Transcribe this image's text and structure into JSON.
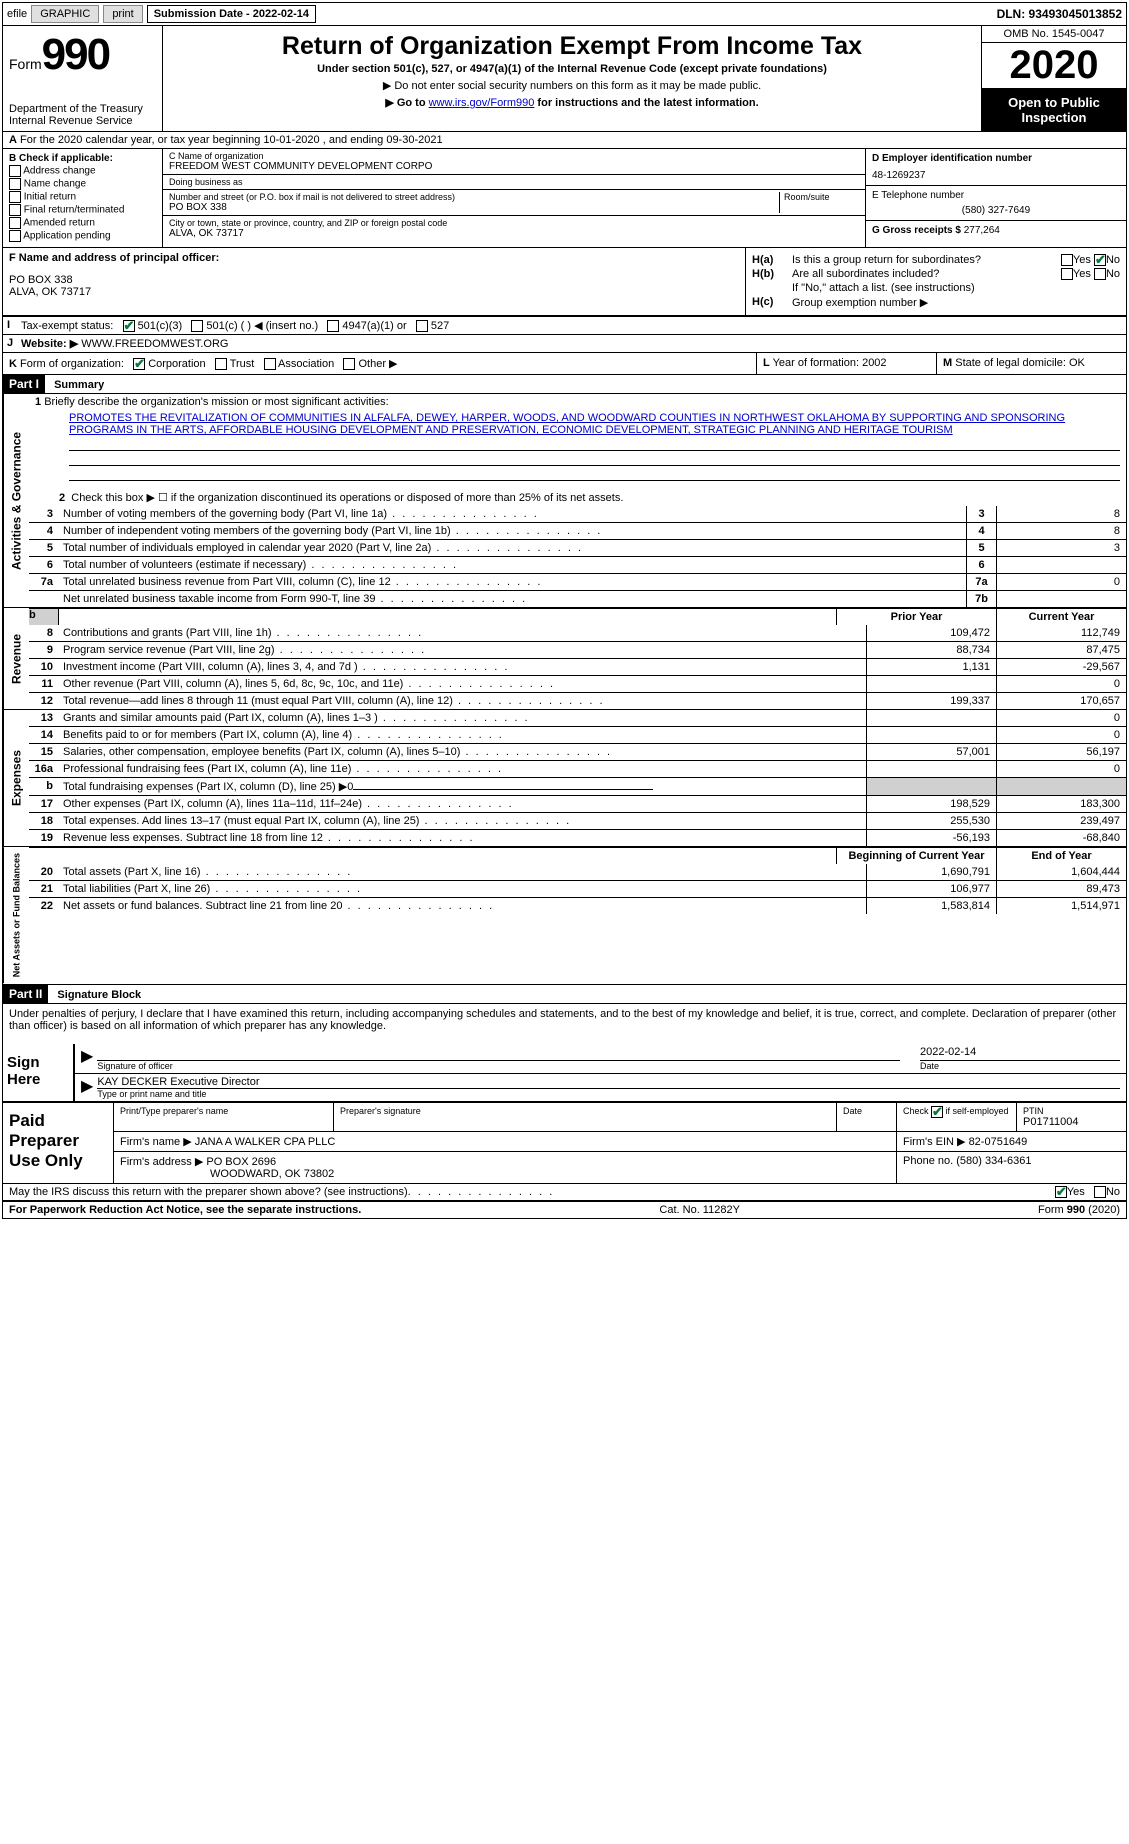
{
  "topbar": {
    "efile": "efile",
    "graphic": "GRAPHIC",
    "print": "print",
    "submission_label": "Submission Date - 2022-02-14",
    "dln": "DLN: 93493045013852"
  },
  "header": {
    "form_prefix": "Form",
    "form_number": "990",
    "dept": "Department of the Treasury",
    "irs": "Internal Revenue Service",
    "title": "Return of Organization Exempt From Income Tax",
    "under": "Under section 501(c), 527, or 4947(a)(1) of the Internal Revenue Code (except private foundations)",
    "note1": "▶ Do not enter social security numbers on this form as it may be made public.",
    "note2_pre": "▶ Go to ",
    "note2_link": "www.irs.gov/Form990",
    "note2_post": " for instructions and the latest information.",
    "omb": "OMB No. 1545-0047",
    "year": "2020",
    "open": "Open to Public Inspection"
  },
  "row_a": {
    "label": "A",
    "text": "For the 2020 calendar year, or tax year beginning 10-01-2020    , and ending 09-30-2021"
  },
  "section_b": {
    "header": "B Check if applicable:",
    "opts": [
      "Address change",
      "Name change",
      "Initial return",
      "Final return/terminated",
      "Amended return",
      "Application pending"
    ]
  },
  "section_c": {
    "name_label": "C Name of organization",
    "name": "FREEDOM WEST COMMUNITY DEVELOPMENT CORPO",
    "dba_label": "Doing business as",
    "dba": "",
    "addr_label": "Number and street (or P.O. box if mail is not delivered to street address)",
    "room_label": "Room/suite",
    "addr": "PO BOX 338",
    "city_label": "City or town, state or province, country, and ZIP or foreign postal code",
    "city": "ALVA, OK  73717"
  },
  "section_d": {
    "label": "D Employer identification number",
    "ein": "48-1269237"
  },
  "section_e": {
    "label": "E Telephone number",
    "phone": "(580) 327-7649"
  },
  "section_g": {
    "label": "G Gross receipts $",
    "amount": "277,264"
  },
  "section_f": {
    "label": "F  Name and address of principal officer:",
    "addr1": "PO BOX 338",
    "addr2": "ALVA, OK  73717"
  },
  "section_h": {
    "ha_label": "H(a)",
    "ha_text": "Is this a group return for subordinates?",
    "ha_yes": "Yes",
    "ha_no": "No",
    "hb_label": "H(b)",
    "hb_text": "Are all subordinates included?",
    "hb_yes": "Yes",
    "hb_no": "No",
    "hb_note": "If \"No,\" attach a list. (see instructions)",
    "hc_label": "H(c)",
    "hc_text": "Group exemption number ▶"
  },
  "row_i": {
    "label": "I",
    "text": "Tax-exempt status:",
    "opt1": "501(c)(3)",
    "opt2": "501(c) (  ) ◀ (insert no.)",
    "opt3": "4947(a)(1) or",
    "opt4": "527"
  },
  "row_j": {
    "label": "J",
    "text": "Website: ▶",
    "url": "WWW.FREEDOMWEST.ORG"
  },
  "row_k": {
    "label": "K",
    "text": "Form of organization:",
    "opts": [
      "Corporation",
      "Trust",
      "Association",
      "Other ▶"
    ]
  },
  "row_l": {
    "label": "L",
    "text": "Year of formation: 2002"
  },
  "row_m": {
    "label": "M",
    "text": "State of legal domicile: OK"
  },
  "part1": {
    "num": "Part I",
    "title": "Summary",
    "line1_label": "1",
    "line1_text": "Briefly describe the organization's mission or most significant activities:",
    "mission": "PROMOTES THE REVITALIZATION OF COMMUNITIES IN ALFALFA, DEWEY, HARPER, WOODS, AND WOODWARD COUNTIES IN NORTHWEST OKLAHOMA BY SUPPORTING AND SPONSORING PROGRAMS IN THE ARTS, AFFORDABLE HOUSING DEVELOPMENT AND PRESERVATION, ECONOMIC DEVELOPMENT, STRATEGIC PLANNING AND HERITAGE TOURISM",
    "line2": "Check this box ▶ ☐ if the organization discontinued its operations or disposed of more than 25% of its net assets.",
    "lines_ag": [
      {
        "n": "3",
        "d": "Number of voting members of the governing body (Part VI, line 1a)",
        "b": "3",
        "v": "8"
      },
      {
        "n": "4",
        "d": "Number of independent voting members of the governing body (Part VI, line 1b)",
        "b": "4",
        "v": "8"
      },
      {
        "n": "5",
        "d": "Total number of individuals employed in calendar year 2020 (Part V, line 2a)",
        "b": "5",
        "v": "3"
      },
      {
        "n": "6",
        "d": "Total number of volunteers (estimate if necessary)",
        "b": "6",
        "v": ""
      },
      {
        "n": "7a",
        "d": "Total unrelated business revenue from Part VIII, column (C), line 12",
        "b": "7a",
        "v": "0"
      },
      {
        "n": "",
        "d": "Net unrelated business taxable income from Form 990-T, line 39",
        "b": "7b",
        "v": ""
      }
    ],
    "col_prior": "Prior Year",
    "col_current": "Current Year",
    "revenue": [
      {
        "n": "8",
        "d": "Contributions and grants (Part VIII, line 1h)",
        "p": "109,472",
        "c": "112,749"
      },
      {
        "n": "9",
        "d": "Program service revenue (Part VIII, line 2g)",
        "p": "88,734",
        "c": "87,475"
      },
      {
        "n": "10",
        "d": "Investment income (Part VIII, column (A), lines 3, 4, and 7d )",
        "p": "1,131",
        "c": "-29,567"
      },
      {
        "n": "11",
        "d": "Other revenue (Part VIII, column (A), lines 5, 6d, 8c, 9c, 10c, and 11e)",
        "p": "",
        "c": "0"
      },
      {
        "n": "12",
        "d": "Total revenue—add lines 8 through 11 (must equal Part VIII, column (A), line 12)",
        "p": "199,337",
        "c": "170,657"
      }
    ],
    "expenses": [
      {
        "n": "13",
        "d": "Grants and similar amounts paid (Part IX, column (A), lines 1–3 )",
        "p": "",
        "c": "0"
      },
      {
        "n": "14",
        "d": "Benefits paid to or for members (Part IX, column (A), line 4)",
        "p": "",
        "c": "0"
      },
      {
        "n": "15",
        "d": "Salaries, other compensation, employee benefits (Part IX, column (A), lines 5–10)",
        "p": "57,001",
        "c": "56,197"
      },
      {
        "n": "16a",
        "d": "Professional fundraising fees (Part IX, column (A), line 11e)",
        "p": "",
        "c": "0"
      },
      {
        "n": "b",
        "d": "Total fundraising expenses (Part IX, column (D), line 25) ▶0",
        "p": "",
        "c": "",
        "nb": true
      },
      {
        "n": "17",
        "d": "Other expenses (Part IX, column (A), lines 11a–11d, 11f–24e)",
        "p": "198,529",
        "c": "183,300"
      },
      {
        "n": "18",
        "d": "Total expenses. Add lines 13–17 (must equal Part IX, column (A), line 25)",
        "p": "255,530",
        "c": "239,497"
      },
      {
        "n": "19",
        "d": "Revenue less expenses. Subtract line 18 from line 12",
        "p": "-56,193",
        "c": "-68,840"
      }
    ],
    "col_begin": "Beginning of Current Year",
    "col_end": "End of Year",
    "netassets": [
      {
        "n": "20",
        "d": "Total assets (Part X, line 16)",
        "p": "1,690,791",
        "c": "1,604,444"
      },
      {
        "n": "21",
        "d": "Total liabilities (Part X, line 26)",
        "p": "106,977",
        "c": "89,473"
      },
      {
        "n": "22",
        "d": "Net assets or fund balances. Subtract line 21 from line 20",
        "p": "1,583,814",
        "c": "1,514,971"
      }
    ],
    "vtabs": {
      "ag": "Activities & Governance",
      "rev": "Revenue",
      "exp": "Expenses",
      "na": "Net Assets or Fund Balances"
    }
  },
  "part2": {
    "num": "Part II",
    "title": "Signature Block",
    "penalty": "Under penalties of perjury, I declare that I have examined this return, including accompanying schedules and statements, and to the best of my knowledge and belief, it is true, correct, and complete. Declaration of preparer (other than officer) is based on all information of which preparer has any knowledge.",
    "sign_here": "Sign Here",
    "sig_officer": "Signature of officer",
    "sig_date": "2022-02-14",
    "date_label": "Date",
    "officer_name": "KAY DECKER Executive Director",
    "type_name": "Type or print name and title",
    "paid": "Paid Preparer Use Only",
    "prep_name_label": "Print/Type preparer's name",
    "prep_sig_label": "Preparer's signature",
    "prep_date_label": "Date",
    "check_self": "Check ☑ if self-employed",
    "ptin_label": "PTIN",
    "ptin": "P01711004",
    "firm_name_label": "Firm's name    ▶",
    "firm_name": "JANA A WALKER CPA PLLC",
    "firm_ein_label": "Firm's EIN ▶",
    "firm_ein": "82-0751649",
    "firm_addr_label": "Firm's address ▶",
    "firm_addr1": "PO BOX 2696",
    "firm_addr2": "WOODWARD, OK  73802",
    "phone_label": "Phone no.",
    "phone": "(580) 334-6361",
    "discuss": "May the IRS discuss this return with the preparer shown above? (see instructions)",
    "yes": "Yes",
    "no": "No"
  },
  "footer": {
    "left": "For Paperwork Reduction Act Notice, see the separate instructions.",
    "mid": "Cat. No. 11282Y",
    "right": "Form 990 (2020)"
  }
}
